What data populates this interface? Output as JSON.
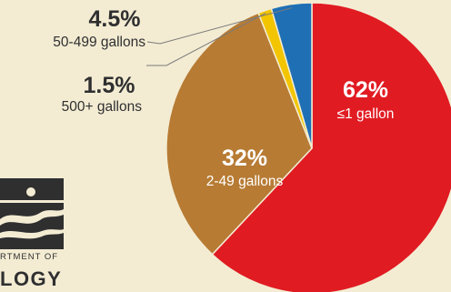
{
  "chart_data": {
    "type": "pie",
    "title": "",
    "slices": [
      {
        "label": "≤1 gallon",
        "percent_label": "62%",
        "value": 62,
        "color": "#e11b22"
      },
      {
        "label": "2-49 gallons",
        "percent_label": "32%",
        "value": 32,
        "color": "#b77b34"
      },
      {
        "label": "500+ gallons",
        "percent_label": "1.5%",
        "value": 1.5,
        "color": "#f2c500"
      },
      {
        "label": "50-499 gallons",
        "percent_label": "4.5%",
        "value": 4.5,
        "color": "#1f6fb5"
      }
    ]
  },
  "logo": {
    "line1": "RTMENT OF",
    "line2": "LOGY"
  }
}
